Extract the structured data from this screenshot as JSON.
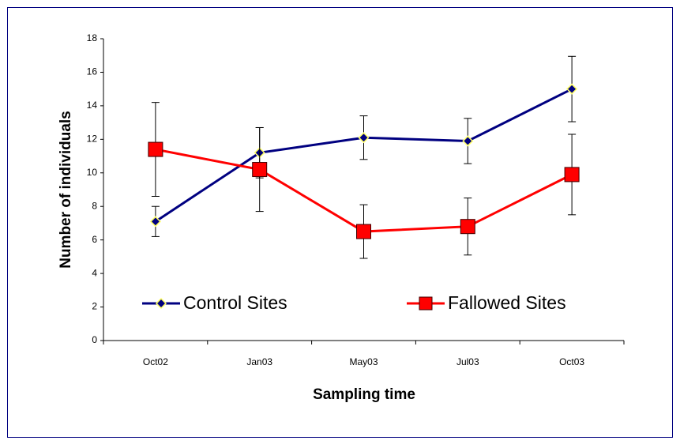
{
  "chart_data": {
    "type": "line",
    "x_label": "Sampling time",
    "y_label": "Number of individuals",
    "categories": [
      "Oct02",
      "Jan03",
      "May03",
      "Jul03",
      "Oct03"
    ],
    "series": [
      {
        "name": "Control Sites",
        "color": "#000080",
        "marker": "diamond",
        "marker_edge": "#ffff66",
        "values": [
          7.1,
          11.2,
          12.1,
          11.9,
          15.0
        ],
        "errors": [
          0.9,
          1.5,
          1.3,
          1.35,
          1.95
        ]
      },
      {
        "name": "Fallowed Sites",
        "color": "#ff0000",
        "marker": "square",
        "marker_edge": "#400000",
        "values": [
          11.4,
          10.2,
          6.5,
          6.8,
          9.9
        ],
        "errors": [
          2.8,
          2.5,
          1.6,
          1.7,
          2.4
        ]
      }
    ],
    "ylim": [
      0,
      18
    ],
    "yticks": [
      0,
      2,
      4,
      6,
      8,
      10,
      12,
      14,
      16,
      18
    ],
    "grid": false,
    "legend": "lower center"
  }
}
